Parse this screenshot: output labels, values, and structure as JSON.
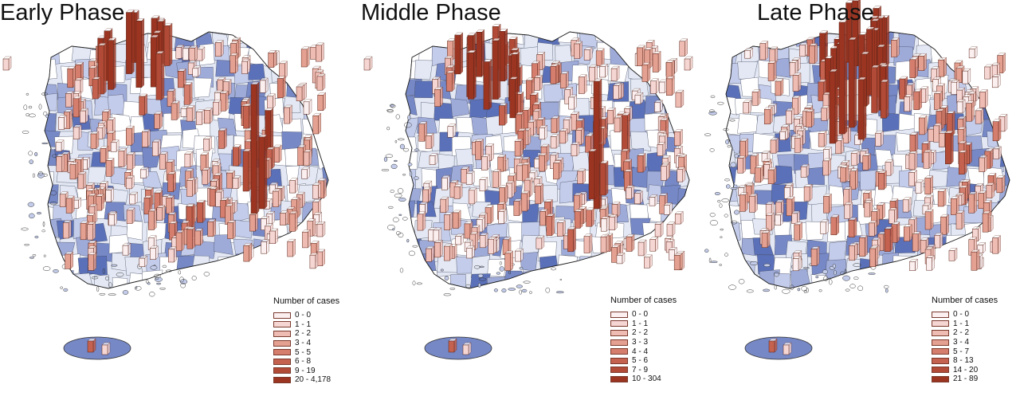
{
  "colors": {
    "ramp": [
      "#fbeff0",
      "#f6d6d3",
      "#eebcb3",
      "#e4a091",
      "#d57e6d",
      "#c4624f",
      "#b14a36",
      "#9b3522"
    ],
    "region_fills": [
      "#ffffff",
      "#e3e8f4",
      "#c3ccea",
      "#9eabd9",
      "#7688c6",
      "#5a70b8"
    ],
    "outline": "#333333"
  },
  "panels": [
    {
      "title": "Early Phase",
      "legend_title": "Number of cases",
      "legend": [
        "0 - 0",
        "1 - 1",
        "2 - 2",
        "3 - 4",
        "5 - 5",
        "6 - 8",
        "9 - 19",
        "20 - 4,178"
      ]
    },
    {
      "title": "Middle Phase",
      "legend_title": "Number of cases",
      "legend": [
        "0 - 0",
        "1 - 1",
        "2 - 2",
        "3 - 3",
        "4 - 4",
        "5 - 6",
        "7 - 9",
        "10 - 304"
      ]
    },
    {
      "title": "Late Phase",
      "legend_title": "Number of cases",
      "legend": [
        "0 - 0",
        "1 - 1",
        "2 - 2",
        "3 - 4",
        "5 - 7",
        "8 - 13",
        "14 - 20",
        "21 - 89"
      ]
    }
  ]
}
